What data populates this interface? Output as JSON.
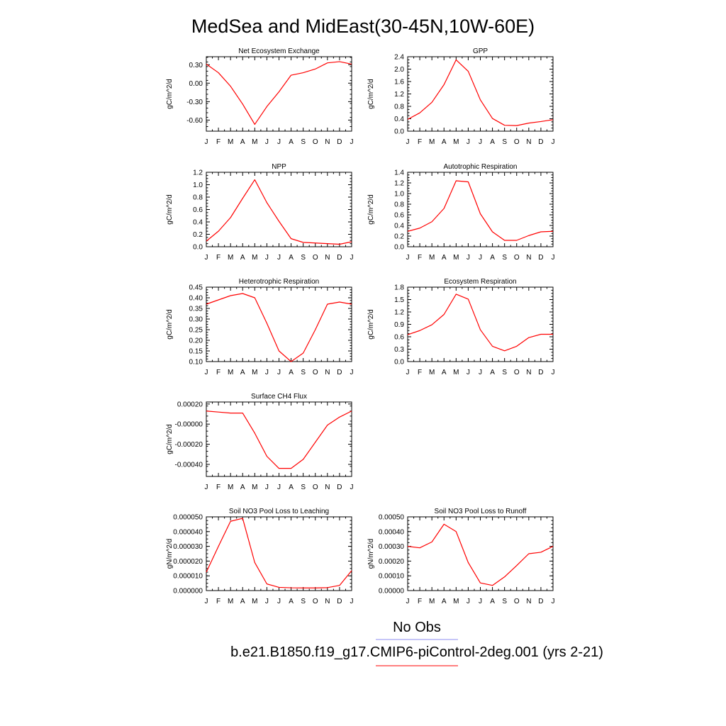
{
  "figure": {
    "title": "MedSea and MidEast(30-45N,10W-60E)",
    "legend": [
      {
        "label": "No Obs",
        "color": "#8c8cf0"
      },
      {
        "label": "b.e21.B1850.f19_g17.CMIP6-piControl-2deg.001 (yrs 2-21)",
        "color": "#ff0000"
      }
    ]
  },
  "chart_data": [
    {
      "type": "line",
      "title": "Net Ecosystem Exchange",
      "ylabel": "gC/m^2/d",
      "categories": [
        "J",
        "F",
        "M",
        "A",
        "M",
        "J",
        "J",
        "A",
        "S",
        "O",
        "N",
        "D",
        "J"
      ],
      "ylim": [
        -0.78,
        0.43
      ],
      "yticks": [
        -0.6,
        -0.3,
        0.0,
        0.3
      ],
      "ytick_labels": [
        "-0.60",
        "-0.30",
        "0.00",
        "0.30"
      ],
      "series": [
        {
          "color": "#ff0000",
          "values": [
            0.31,
            0.17,
            -0.05,
            -0.34,
            -0.67,
            -0.38,
            -0.14,
            0.13,
            0.17,
            0.23,
            0.33,
            0.35,
            0.31
          ]
        }
      ]
    },
    {
      "type": "line",
      "title": "GPP",
      "ylabel": "gC/m^2/d",
      "categories": [
        "J",
        "F",
        "M",
        "A",
        "M",
        "J",
        "J",
        "A",
        "S",
        "O",
        "N",
        "D",
        "J"
      ],
      "ylim": [
        0.0,
        2.4
      ],
      "yticks": [
        0.0,
        0.4,
        0.8,
        1.2,
        1.6,
        2.0,
        2.4
      ],
      "ytick_labels": [
        "0.0",
        "0.4",
        "0.8",
        "1.2",
        "1.6",
        "2.0",
        "2.4"
      ],
      "series": [
        {
          "color": "#ff0000",
          "values": [
            0.38,
            0.59,
            0.93,
            1.5,
            2.3,
            1.93,
            1.01,
            0.41,
            0.19,
            0.18,
            0.26,
            0.31,
            0.37
          ]
        }
      ]
    },
    {
      "type": "line",
      "title": "NPP",
      "ylabel": "gC/m^2/d",
      "categories": [
        "J",
        "F",
        "M",
        "A",
        "M",
        "J",
        "J",
        "A",
        "S",
        "O",
        "N",
        "D",
        "J"
      ],
      "ylim": [
        0.0,
        1.2
      ],
      "yticks": [
        0.0,
        0.2,
        0.4,
        0.6,
        0.8,
        1.0,
        1.2
      ],
      "ytick_labels": [
        "0.0",
        "0.2",
        "0.4",
        "0.6",
        "0.8",
        "1.0",
        "1.2"
      ],
      "series": [
        {
          "color": "#ff0000",
          "values": [
            0.09,
            0.25,
            0.47,
            0.78,
            1.08,
            0.71,
            0.41,
            0.13,
            0.07,
            0.06,
            0.05,
            0.04,
            0.08
          ]
        }
      ]
    },
    {
      "type": "line",
      "title": "Autotrophic Respiration",
      "ylabel": "gC/m^2/d",
      "categories": [
        "J",
        "F",
        "M",
        "A",
        "M",
        "J",
        "J",
        "A",
        "S",
        "O",
        "N",
        "D",
        "J"
      ],
      "ylim": [
        0.0,
        1.4
      ],
      "yticks": [
        0.0,
        0.2,
        0.4,
        0.6,
        0.8,
        1.0,
        1.2,
        1.4
      ],
      "ytick_labels": [
        "0.0",
        "0.2",
        "0.4",
        "0.6",
        "0.8",
        "1.0",
        "1.2",
        "1.4"
      ],
      "series": [
        {
          "color": "#ff0000",
          "values": [
            0.29,
            0.35,
            0.47,
            0.72,
            1.24,
            1.22,
            0.62,
            0.28,
            0.12,
            0.12,
            0.21,
            0.28,
            0.29
          ]
        }
      ]
    },
    {
      "type": "line",
      "title": "Heterotrophic Respiration",
      "ylabel": "gC/m^2/d",
      "categories": [
        "J",
        "F",
        "M",
        "A",
        "M",
        "J",
        "J",
        "A",
        "S",
        "O",
        "N",
        "D",
        "J"
      ],
      "ylim": [
        0.1,
        0.45
      ],
      "yticks": [
        0.1,
        0.15,
        0.2,
        0.25,
        0.3,
        0.35,
        0.4,
        0.45
      ],
      "ytick_labels": [
        "0.10",
        "0.15",
        "0.20",
        "0.25",
        "0.30",
        "0.35",
        "0.40",
        "0.45"
      ],
      "series": [
        {
          "color": "#ff0000",
          "values": [
            0.37,
            0.39,
            0.41,
            0.42,
            0.4,
            0.28,
            0.15,
            0.1,
            0.14,
            0.25,
            0.37,
            0.38,
            0.37
          ]
        }
      ]
    },
    {
      "type": "line",
      "title": "Ecosystem Respiration",
      "ylabel": "gC/m^2/d",
      "categories": [
        "J",
        "F",
        "M",
        "A",
        "M",
        "J",
        "J",
        "A",
        "S",
        "O",
        "N",
        "D",
        "J"
      ],
      "ylim": [
        0.0,
        1.8
      ],
      "yticks": [
        0.0,
        0.3,
        0.6,
        0.9,
        1.2,
        1.5,
        1.8
      ],
      "ytick_labels": [
        "0.0",
        "0.3",
        "0.6",
        "0.9",
        "1.2",
        "1.5",
        "1.8"
      ],
      "series": [
        {
          "color": "#ff0000",
          "values": [
            0.65,
            0.75,
            0.89,
            1.14,
            1.63,
            1.51,
            0.77,
            0.37,
            0.26,
            0.37,
            0.58,
            0.66,
            0.66
          ]
        }
      ]
    },
    {
      "type": "line",
      "title": "Surface CH4 Flux",
      "ylabel": "gC/m^2/d",
      "categories": [
        "J",
        "F",
        "M",
        "A",
        "M",
        "J",
        "J",
        "A",
        "S",
        "O",
        "N",
        "D",
        "J"
      ],
      "ylim": [
        -0.00052,
        0.00022
      ],
      "yticks": [
        -0.0004,
        -0.0002,
        0.0,
        0.0002
      ],
      "ytick_labels": [
        "-0.00040",
        "-0.00020",
        "-0.00000",
        "0.00020"
      ],
      "series": [
        {
          "color": "#ff0000",
          "values": [
            0.00013,
            0.00012,
            0.00011,
            0.00011,
            -9e-05,
            -0.00032,
            -0.00044,
            -0.00044,
            -0.00035,
            -0.00018,
            -1e-05,
            7e-05,
            0.00013
          ]
        }
      ]
    },
    {
      "type": "line",
      "title": "Soil NO3 Pool Loss to Leaching",
      "ylabel": "gN/m^2/d",
      "categories": [
        "J",
        "F",
        "M",
        "A",
        "M",
        "J",
        "J",
        "A",
        "S",
        "O",
        "N",
        "D",
        "J"
      ],
      "ylim": [
        0.0,
        5e-05
      ],
      "yticks": [
        0.0,
        1e-05,
        2e-05,
        3e-05,
        4e-05,
        5e-05
      ],
      "ytick_labels": [
        "0.000000",
        "0.000010",
        "0.000020",
        "0.000030",
        "0.000040",
        "0.000050"
      ],
      "series": [
        {
          "color": "#ff0000",
          "values": [
            1.25e-05,
            3e-05,
            4.7e-05,
            4.9e-05,
            1.9e-05,
            4.5e-06,
            2.2e-06,
            1.9e-06,
            1.8e-06,
            1.8e-06,
            2e-06,
            3.5e-06,
            1.35e-05
          ]
        }
      ]
    },
    {
      "type": "line",
      "title": "Soil NO3 Pool Loss to Runoff",
      "ylabel": "gN/m^2/d",
      "categories": [
        "J",
        "F",
        "M",
        "A",
        "M",
        "J",
        "J",
        "A",
        "S",
        "O",
        "N",
        "D",
        "J"
      ],
      "ylim": [
        0.0,
        0.0005
      ],
      "yticks": [
        0.0,
        0.0001,
        0.0002,
        0.0003,
        0.0004,
        0.0005
      ],
      "ytick_labels": [
        "0.00000",
        "0.00010",
        "0.00020",
        "0.00030",
        "0.00040",
        "0.00050"
      ],
      "series": [
        {
          "color": "#ff0000",
          "values": [
            0.0003,
            0.00029,
            0.00033,
            0.00045,
            0.0004,
            0.00019,
            5.2e-05,
            3.5e-05,
            9.3e-05,
            0.00017,
            0.00025,
            0.00026,
            0.0003
          ]
        }
      ]
    }
  ]
}
